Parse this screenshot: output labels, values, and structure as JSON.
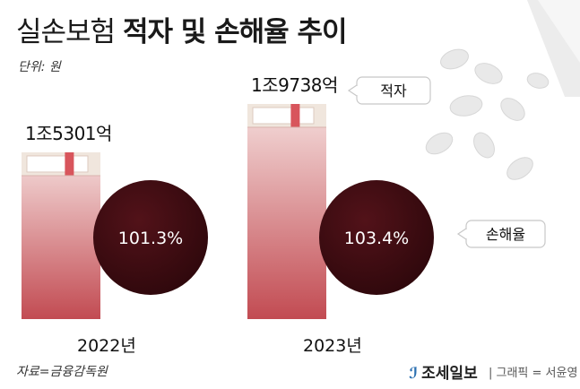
{
  "title_light": "실손보험",
  "title_bold": "적자 및 손해율 추이",
  "unit_label": "단위: 원",
  "source": "자료=금융감독원",
  "credit_logo": "조세일보",
  "credit_text": "| 그래픽 = 서윤영",
  "chart_data": {
    "type": "bar",
    "categories": [
      "2022년",
      "2023년"
    ],
    "series": [
      {
        "name": "적자",
        "values": [
          15301,
          19738
        ],
        "labels": [
          "1조5301억",
          "1조9738억"
        ]
      },
      {
        "name": "손해율",
        "values": [
          101.3,
          103.4
        ],
        "labels": [
          "101.3%",
          "103.4%"
        ]
      }
    ],
    "deficit_unit": "억 원",
    "loss_ratio_unit": "%",
    "colors": {
      "bar_top": "#f3d6d5",
      "bar_bottom": "#c94f55",
      "circle": "#3d0d12",
      "pack_top": "#f0e6dd",
      "band": "#d8555c"
    }
  }
}
